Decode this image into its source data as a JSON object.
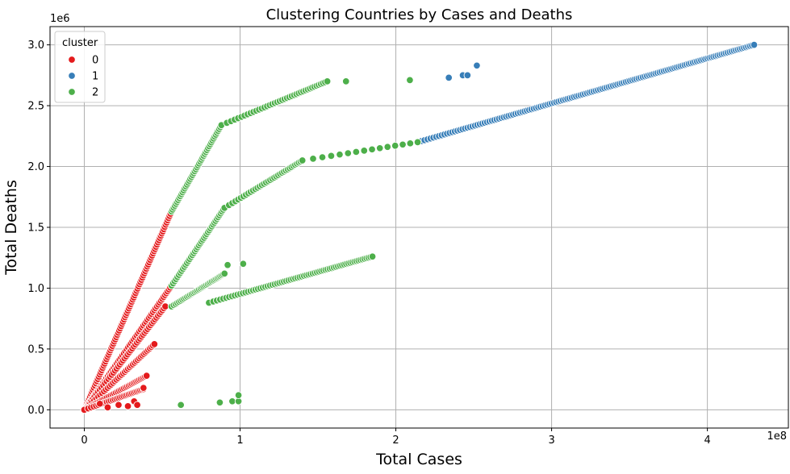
{
  "chart_data": {
    "type": "scatter",
    "title": "Clustering Countries by Cases and Deaths",
    "xlabel": "Total Cases",
    "ylabel": "Total Deaths",
    "x_offset_label": "1e8",
    "y_offset_label": "1e6",
    "xlim": [
      -0.22,
      4.52
    ],
    "ylim": [
      -0.15,
      3.15
    ],
    "xticks": [
      0,
      1,
      2,
      3,
      4
    ],
    "yticks": [
      0.0,
      0.5,
      1.0,
      1.5,
      2.0,
      2.5,
      3.0
    ],
    "xtick_labels": [
      "0",
      "1",
      "2",
      "3",
      "4"
    ],
    "ytick_labels": [
      "0.0",
      "0.5",
      "1.0",
      "1.5",
      "2.0",
      "2.5",
      "3.0"
    ],
    "grid": true,
    "legend": {
      "title": "cluster",
      "placement": "top-left",
      "entries": [
        "0",
        "1",
        "2"
      ]
    },
    "colors": {
      "0": "#e41a1c",
      "1": "#377eb8",
      "2": "#4daf4a"
    },
    "series": [
      {
        "name": "0",
        "curves": [
          {
            "from": [
              0.0,
              0.0
            ],
            "to": [
              0.56,
              1.63
            ],
            "n": 90,
            "power": 1.0
          },
          {
            "from": [
              0.0,
              0.0
            ],
            "to": [
              0.56,
              1.02
            ],
            "n": 60,
            "power": 0.9
          },
          {
            "from": [
              0.0,
              0.0
            ],
            "to": [
              0.52,
              0.85
            ],
            "n": 50,
            "power": 0.9
          },
          {
            "from": [
              0.0,
              0.0
            ],
            "to": [
              0.45,
              0.54
            ],
            "n": 40,
            "power": 0.85
          },
          {
            "from": [
              0.0,
              0.0
            ],
            "to": [
              0.4,
              0.28
            ],
            "n": 35,
            "power": 0.8
          },
          {
            "from": [
              0.0,
              0.0
            ],
            "to": [
              0.38,
              0.17
            ],
            "n": 30,
            "power": 0.8
          }
        ],
        "points": [
          [
            0.32,
            0.07
          ],
          [
            0.34,
            0.04
          ],
          [
            0.38,
            0.18
          ],
          [
            0.28,
            0.03
          ],
          [
            0.22,
            0.04
          ],
          [
            0.15,
            0.02
          ],
          [
            0.1,
            0.05
          ]
        ]
      },
      {
        "name": "1",
        "curves": [
          {
            "from": [
              2.14,
              2.2
            ],
            "to": [
              4.3,
              3.0
            ],
            "n": 150,
            "power": 0.9
          }
        ],
        "points": [
          [
            2.34,
            2.73
          ],
          [
            2.43,
            2.75
          ],
          [
            2.46,
            2.75
          ],
          [
            2.52,
            2.83
          ]
        ]
      },
      {
        "name": "2",
        "curves": [
          {
            "from": [
              0.56,
              1.63
            ],
            "to": [
              0.88,
              2.34
            ],
            "n": 45,
            "power": 1.0
          },
          {
            "from": [
              0.88,
              2.34
            ],
            "to": [
              1.56,
              2.7
            ],
            "n": 40,
            "power": 0.8
          },
          {
            "from": [
              0.56,
              1.02
            ],
            "to": [
              0.9,
              1.66
            ],
            "n": 40,
            "power": 0.95
          },
          {
            "from": [
              0.9,
              1.66
            ],
            "to": [
              1.4,
              2.05
            ],
            "n": 35,
            "power": 0.8
          },
          {
            "from": [
              1.4,
              2.05
            ],
            "to": [
              2.14,
              2.2
            ],
            "n": 14,
            "power": 0.9
          },
          {
            "from": [
              0.56,
              0.85
            ],
            "to": [
              0.9,
              1.12
            ],
            "n": 35,
            "power": 0.9
          },
          {
            "from": [
              0.8,
              0.88
            ],
            "to": [
              1.85,
              1.26
            ],
            "n": 70,
            "power": 0.85
          }
        ],
        "points": [
          [
            1.68,
            2.7
          ],
          [
            2.09,
            2.71
          ],
          [
            0.92,
            1.19
          ],
          [
            1.02,
            1.2
          ],
          [
            0.62,
            0.04
          ],
          [
            0.87,
            0.06
          ],
          [
            0.95,
            0.07
          ],
          [
            0.99,
            0.07
          ],
          [
            0.99,
            0.12
          ]
        ]
      }
    ]
  }
}
